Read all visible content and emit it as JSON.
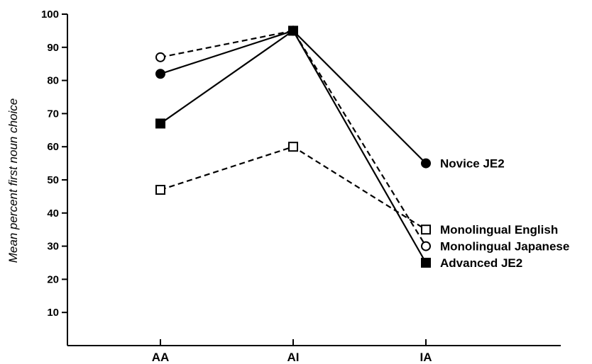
{
  "chart_data": {
    "type": "line",
    "categories": [
      "AA",
      "AI",
      "IA"
    ],
    "ylabel": "Mean percent first noun choice",
    "xlabel": "",
    "ylim": [
      0,
      100
    ],
    "yticks": [
      10,
      20,
      30,
      40,
      50,
      60,
      70,
      80,
      90,
      100
    ],
    "grid": false,
    "legend": "labels at end of lines (right)",
    "series": [
      {
        "name": "Novice JE2",
        "values": [
          82,
          95,
          55
        ],
        "marker": "filled-circle",
        "linestyle": "solid"
      },
      {
        "name": "Monolingual English",
        "values": [
          47,
          60,
          35
        ],
        "marker": "open-square",
        "linestyle": "dashed"
      },
      {
        "name": "Monolingual Japanese",
        "values": [
          87,
          95,
          30
        ],
        "marker": "open-circle",
        "linestyle": "dashed"
      },
      {
        "name": "Advanced JE2",
        "values": [
          67,
          95,
          25
        ],
        "marker": "filled-square",
        "linestyle": "solid"
      }
    ],
    "colors": {
      "line": "#000000",
      "background": "#ffffff"
    }
  }
}
